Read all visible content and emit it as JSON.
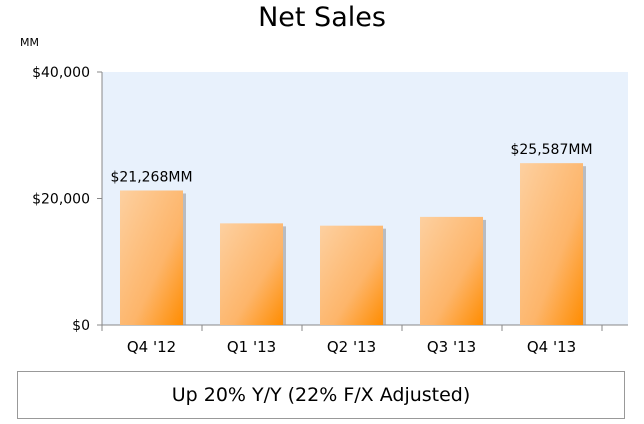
{
  "chart_data": {
    "type": "bar",
    "title": "Net Sales",
    "ylabel": "MM",
    "xlabel": "",
    "categories": [
      "Q4 '12",
      "Q1 '13",
      "Q2 '13",
      "Q3 '13",
      "Q4 '13"
    ],
    "values": [
      21268,
      16070,
      15704,
      17092,
      25587
    ],
    "data_labels": [
      "$21,268MM",
      "",
      "",
      "",
      "$25,587MM"
    ],
    "ylim": [
      0,
      40000
    ],
    "yticks": [
      "$0",
      "$20,000",
      "$40,000"
    ],
    "grid": false,
    "colors": {
      "bar_light": "#fdd0a0",
      "bar_dark": "#ff8c00",
      "plot_bg": "#e8f1fc"
    }
  },
  "note": "Up 20% Y/Y (22% F/X Adjusted)"
}
